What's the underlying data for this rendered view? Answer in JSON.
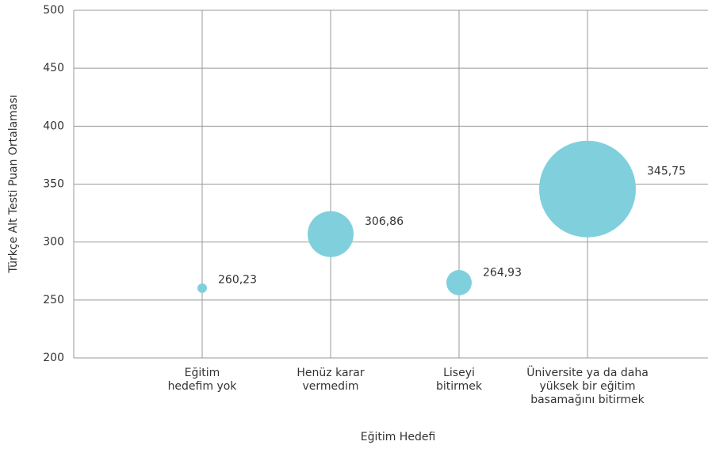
{
  "chart_data": {
    "type": "bubble",
    "x_label": "Eğitim Hedefi",
    "y_label": "Türkçe Alt Testi Puan Ortalaması",
    "categories": [
      "Eğitim\nhedefim yok",
      "Henüz karar\nvermedim",
      "Liseyi\nbitirmek",
      "Üniversite ya da daha\nyüksek bir eğitim\nbasamağını bitirmek"
    ],
    "values": [
      260.23,
      306.86,
      264.93,
      345.75
    ],
    "value_labels": [
      "260,23",
      "306,86",
      "264,93",
      "345,75"
    ],
    "sizes": [
      36,
      841,
      256,
      3721
    ],
    "color": "#7fd0dc",
    "ylim": [
      200,
      500
    ],
    "yticks": [
      200,
      250,
      300,
      350,
      400,
      450,
      500
    ],
    "grid": true
  }
}
